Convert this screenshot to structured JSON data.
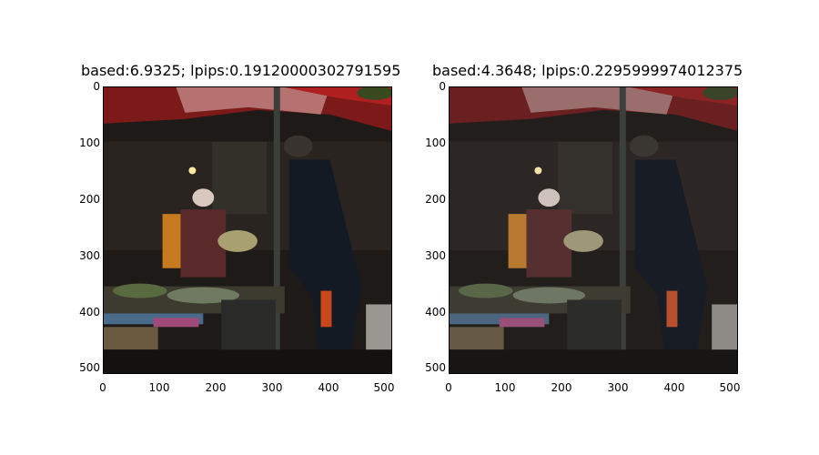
{
  "panels": [
    {
      "title": "based:6.9325; lpips:0.19120000302791595",
      "yticks": [
        "0",
        "100",
        "200",
        "300",
        "400",
        "500"
      ],
      "xticks": [
        "0",
        "100",
        "200",
        "300",
        "400",
        "500"
      ]
    },
    {
      "title": "based:4.3648; lpips:0.2295999974012375",
      "yticks": [
        "0",
        "100",
        "200",
        "300",
        "400",
        "500"
      ],
      "xticks": [
        "0",
        "100",
        "200",
        "300",
        "400",
        "500"
      ]
    }
  ],
  "colors": {
    "scene_bg": "#1e1a18",
    "umbrella_red": "#9a1f1f",
    "umbrella_pink": "#c98f8f",
    "figure_dark": "#141a24",
    "pole": "#3a3f3a"
  }
}
